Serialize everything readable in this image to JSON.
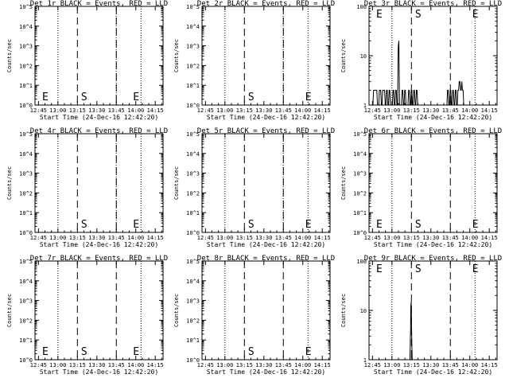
{
  "figure": {
    "background": "#ffffff",
    "ink_color": "#000000",
    "panel_grid": "3 columns x 3 rows"
  },
  "chart_data": [
    {
      "type": "line",
      "title": "Det 1r BLACK = Events, RED = LLD",
      "xlabel": "Start Time (24-Dec-16 12:42:20)",
      "ylabel": "Counts/sec",
      "x_ticks": [
        "12:45",
        "13:00",
        "13:15",
        "13:30",
        "13:45",
        "14:00",
        "14:15"
      ],
      "y_scale": "log",
      "y_ticks": [
        "10^0",
        "10^1",
        "10^2",
        "10^3",
        "10^4",
        "10^5"
      ],
      "ylim": [
        1,
        100000
      ],
      "y_tick_values": [
        1,
        10,
        100,
        1000,
        10000,
        100000
      ],
      "vlines_dotted": [
        "13:00",
        "13:45",
        "14:04"
      ],
      "vlines_dashed": [
        "13:15",
        "13:45"
      ],
      "markers": [
        {
          "text": "E",
          "x": "12:46"
        },
        {
          "text": "S",
          "x": "13:16"
        },
        {
          "text": "E",
          "x": "13:56"
        }
      ],
      "series": []
    },
    {
      "type": "line",
      "title": "Det 2r BLACK = Events, RED = LLD",
      "xlabel": "Start Time (24-Dec-16 12:42:20)",
      "ylabel": "Counts/sec",
      "x_ticks": [
        "12:45",
        "13:00",
        "13:15",
        "13:30",
        "13:45",
        "14:00",
        "14:15"
      ],
      "y_scale": "log",
      "y_ticks": [
        "10^0",
        "10^1",
        "10^2",
        "10^3",
        "10^4",
        "10^5"
      ],
      "ylim": [
        1,
        100000
      ],
      "y_tick_values": [
        1,
        10,
        100,
        1000,
        10000,
        100000
      ],
      "vlines_dotted": [
        "13:00",
        "13:45",
        "14:04"
      ],
      "vlines_dashed": [
        "13:15",
        "13:45"
      ],
      "markers": [
        {
          "text": "S",
          "x": "13:16"
        },
        {
          "text": "E",
          "x": "14:00"
        }
      ],
      "series": []
    },
    {
      "type": "line",
      "title": "Det 3r BLACK = Events, RED = LLD",
      "xlabel": "Start Time (24-Dec-16 12:42:20)",
      "ylabel": "Counts/sec",
      "x_ticks": [
        "12:45",
        "13:00",
        "13:15",
        "13:30",
        "13:45",
        "14:00",
        "14:15"
      ],
      "y_scale": "log",
      "y_ticks": [
        "1",
        "10",
        "100"
      ],
      "ylim": [
        1,
        100
      ],
      "y_tick_values": [
        1,
        10,
        100
      ],
      "vlines_dotted": [
        "13:00",
        "14:04"
      ],
      "vlines_dashed": [
        "13:15",
        "13:45"
      ],
      "markers": [
        {
          "text": "E",
          "x": "12:46"
        },
        {
          "text": "S",
          "x": "13:16"
        },
        {
          "text": "E",
          "x": "14:00"
        }
      ],
      "series": [
        {
          "color": "#000000",
          "x_minutes_after_12:42:20": [
            3,
            3.5,
            6,
            6.5,
            7.5,
            8,
            9,
            9.5,
            10,
            10.5,
            12,
            12.5,
            13,
            13.5,
            14,
            14.5,
            15,
            15.5,
            16,
            16.5,
            18,
            18.5,
            19,
            19.5,
            20,
            20.5,
            21,
            21.5,
            22,
            22.5,
            23,
            23.5,
            25,
            25.5,
            26,
            26.5,
            27,
            27.5,
            28,
            28.5,
            30,
            30.5,
            31,
            31.5,
            32,
            32.5,
            33,
            33.5,
            34,
            34.5,
            35,
            35.5,
            36,
            36.5,
            37,
            37.5,
            60,
            60.5,
            61,
            61.5,
            62,
            62.5,
            63,
            63.5,
            64,
            64.5,
            65,
            65.5,
            66,
            66.5,
            67,
            67.5,
            68,
            68.5,
            69,
            69.5,
            70,
            70.5,
            71,
            71.5,
            72,
            72.5,
            73,
            73.5
          ],
          "values": [
            1,
            2,
            2,
            1,
            1,
            2,
            2,
            1,
            1,
            2,
            2,
            1,
            1,
            2,
            2,
            1,
            1,
            2,
            2,
            1,
            1,
            2,
            2,
            1,
            1,
            2,
            2,
            1,
            1,
            15,
            20,
            1,
            1,
            2,
            2,
            1,
            1,
            2,
            2,
            1,
            1,
            2,
            2,
            1,
            1,
            2,
            2,
            1,
            1,
            2,
            2,
            1,
            1,
            2,
            2,
            1,
            1,
            2,
            2,
            1,
            1,
            2,
            2,
            1,
            1,
            2,
            2,
            1,
            1,
            2,
            2,
            1,
            1,
            2,
            2,
            3,
            3,
            2,
            2,
            3,
            2,
            2,
            1,
            1
          ]
        }
      ]
    },
    {
      "type": "line",
      "title": "Det 4r BLACK = Events, RED = LLD",
      "xlabel": "Start Time (24-Dec-16 12:42:20)",
      "ylabel": "Counts/sec",
      "x_ticks": [
        "12:45",
        "13:00",
        "13:15",
        "13:30",
        "13:45",
        "14:00",
        "14:15"
      ],
      "y_scale": "log",
      "y_ticks": [
        "10^0",
        "10^1",
        "10^2",
        "10^3",
        "10^4",
        "10^5"
      ],
      "ylim": [
        1,
        100000
      ],
      "y_tick_values": [
        1,
        10,
        100,
        1000,
        10000,
        100000
      ],
      "vlines_dotted": [
        "13:00",
        "13:45",
        "14:04"
      ],
      "vlines_dashed": [
        "13:15",
        "13:45"
      ],
      "markers": [
        {
          "text": "S",
          "x": "13:16"
        },
        {
          "text": "E",
          "x": "13:56"
        }
      ],
      "series": []
    },
    {
      "type": "line",
      "title": "Det 5r BLACK = Events, RED = LLD",
      "xlabel": "Start Time (24-Dec-16 12:42:20)",
      "ylabel": "Counts/sec",
      "x_ticks": [
        "12:45",
        "13:00",
        "13:15",
        "13:30",
        "13:45",
        "14:00",
        "14:15"
      ],
      "y_scale": "log",
      "y_ticks": [
        "10^0",
        "10^1",
        "10^2",
        "10^3",
        "10^4",
        "10^5"
      ],
      "ylim": [
        1,
        100000
      ],
      "y_tick_values": [
        1,
        10,
        100,
        1000,
        10000,
        100000
      ],
      "vlines_dotted": [
        "13:00",
        "13:45",
        "14:04"
      ],
      "vlines_dashed": [
        "13:15",
        "13:45"
      ],
      "markers": [
        {
          "text": "S",
          "x": "13:16"
        },
        {
          "text": "E",
          "x": "14:00"
        }
      ],
      "series": []
    },
    {
      "type": "line",
      "title": "Det 6r BLACK = Events, RED = LLD",
      "xlabel": "Start Time (24-Dec-16 12:42:20)",
      "ylabel": "Counts/sec",
      "x_ticks": [
        "12:45",
        "13:00",
        "13:15",
        "13:30",
        "13:45",
        "14:00",
        "14:15"
      ],
      "y_scale": "log",
      "y_ticks": [
        "10^0",
        "10^1",
        "10^2",
        "10^3",
        "10^4",
        "10^5"
      ],
      "ylim": [
        1,
        100000
      ],
      "y_tick_values": [
        1,
        10,
        100,
        1000,
        10000,
        100000
      ],
      "vlines_dotted": [
        "13:00",
        "14:04"
      ],
      "vlines_dashed": [
        "13:15",
        "13:45"
      ],
      "markers": [
        {
          "text": "E",
          "x": "12:46"
        },
        {
          "text": "S",
          "x": "13:16"
        },
        {
          "text": "E",
          "x": "14:00"
        }
      ],
      "series": []
    },
    {
      "type": "line",
      "title": "Det 7r BLACK = Events, RED = LLD",
      "xlabel": "Start Time (24-Dec-16 12:42:20)",
      "ylabel": "Counts/sec",
      "x_ticks": [
        "12:45",
        "13:00",
        "13:15",
        "13:30",
        "13:45",
        "14:00",
        "14:15"
      ],
      "y_scale": "log",
      "y_ticks": [
        "10^0",
        "10^1",
        "10^2",
        "10^3",
        "10^4",
        "10^5"
      ],
      "ylim": [
        1,
        100000
      ],
      "y_tick_values": [
        1,
        10,
        100,
        1000,
        10000,
        100000
      ],
      "vlines_dotted": [
        "13:00",
        "14:04"
      ],
      "vlines_dashed": [
        "13:15",
        "13:45"
      ],
      "markers": [
        {
          "text": "E",
          "x": "12:46"
        },
        {
          "text": "S",
          "x": "13:16"
        },
        {
          "text": "E",
          "x": "13:56"
        }
      ],
      "series": []
    },
    {
      "type": "line",
      "title": "Det 8r BLACK = Events, RED = LLD",
      "xlabel": "Start Time (24-Dec-16 12:42:20)",
      "ylabel": "Counts/sec",
      "x_ticks": [
        "12:45",
        "13:00",
        "13:15",
        "13:30",
        "13:45",
        "14:00",
        "14:15"
      ],
      "y_scale": "log",
      "y_ticks": [
        "10^0",
        "10^1",
        "10^2",
        "10^3",
        "10^4",
        "10^5"
      ],
      "ylim": [
        1,
        100000
      ],
      "y_tick_values": [
        1,
        10,
        100,
        1000,
        10000,
        100000
      ],
      "vlines_dotted": [
        "13:00",
        "14:04"
      ],
      "vlines_dashed": [
        "13:15",
        "13:45"
      ],
      "markers": [
        {
          "text": "S",
          "x": "13:16"
        },
        {
          "text": "E",
          "x": "14:00"
        }
      ],
      "series": []
    },
    {
      "type": "line",
      "title": "Det 9r BLACK = Events, RED = LLD",
      "xlabel": "Start Time (24-Dec-16 12:42:20)",
      "ylabel": "Counts/sec",
      "x_ticks": [
        "12:45",
        "13:00",
        "13:15",
        "13:30",
        "13:45",
        "14:00",
        "14:15"
      ],
      "y_scale": "log",
      "y_ticks": [
        "1",
        "10",
        "100"
      ],
      "ylim": [
        1,
        100
      ],
      "y_tick_values": [
        1,
        10,
        100
      ],
      "vlines_dotted": [
        "13:00",
        "14:04"
      ],
      "vlines_dashed": [
        "13:15",
        "13:45"
      ],
      "markers": [
        {
          "text": "E",
          "x": "12:46"
        },
        {
          "text": "S",
          "x": "13:16"
        },
        {
          "text": "E",
          "x": "14:00"
        }
      ],
      "series": [
        {
          "color": "#000000",
          "x_minutes_after_12:42:20": [
            31.5,
            32,
            32.2,
            32.5,
            32.7,
            33,
            33.3
          ],
          "values": [
            1,
            4,
            12,
            15,
            6,
            2,
            1
          ]
        }
      ]
    }
  ]
}
